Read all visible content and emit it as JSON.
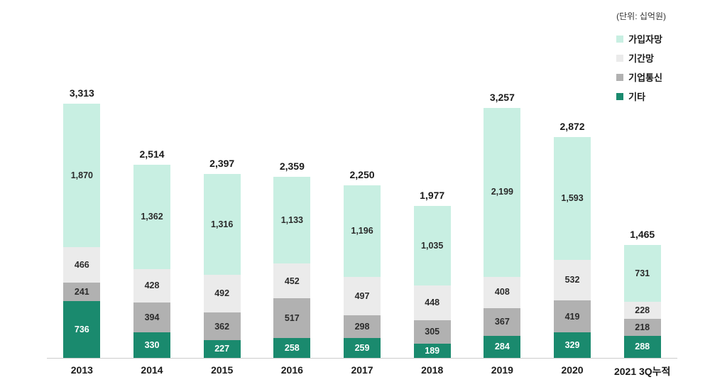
{
  "chart_data": {
    "type": "bar",
    "stacked": true,
    "title": "",
    "unit_label": "(단위: 십억원)",
    "legend_position": "top-right",
    "grid": false,
    "axis_line_color": "#cccccc",
    "categories": [
      "2013",
      "2014",
      "2015",
      "2016",
      "2017",
      "2018",
      "2019",
      "2020",
      "2021 3Q누적"
    ],
    "series": [
      {
        "name": "기타",
        "color": "#1a8a6e",
        "text_color": "#ffffff",
        "values": [
          736,
          330,
          227,
          258,
          259,
          189,
          284,
          329,
          288
        ]
      },
      {
        "name": "기업통신",
        "color": "#b1b1b1",
        "text_color": "#2b2b2b",
        "values": [
          241,
          394,
          362,
          517,
          298,
          305,
          367,
          419,
          218
        ]
      },
      {
        "name": "기간망",
        "color": "#ebebeb",
        "text_color": "#2b2b2b",
        "values": [
          466,
          428,
          492,
          452,
          497,
          448,
          408,
          532,
          228
        ]
      },
      {
        "name": "가입자망",
        "color": "#c8efe2",
        "text_color": "#2b2b2b",
        "values": [
          1870,
          1362,
          1316,
          1133,
          1196,
          1035,
          2199,
          1593,
          731
        ]
      }
    ],
    "totals": [
      3313,
      2514,
      2397,
      2359,
      2250,
      1977,
      3257,
      2872,
      1465
    ],
    "legend": [
      {
        "label": "가입자망",
        "color": "#c8efe2"
      },
      {
        "label": "기간망",
        "color": "#ebebeb"
      },
      {
        "label": "기업통신",
        "color": "#b1b1b1"
      },
      {
        "label": "기타",
        "color": "#1a8a6e"
      }
    ]
  }
}
